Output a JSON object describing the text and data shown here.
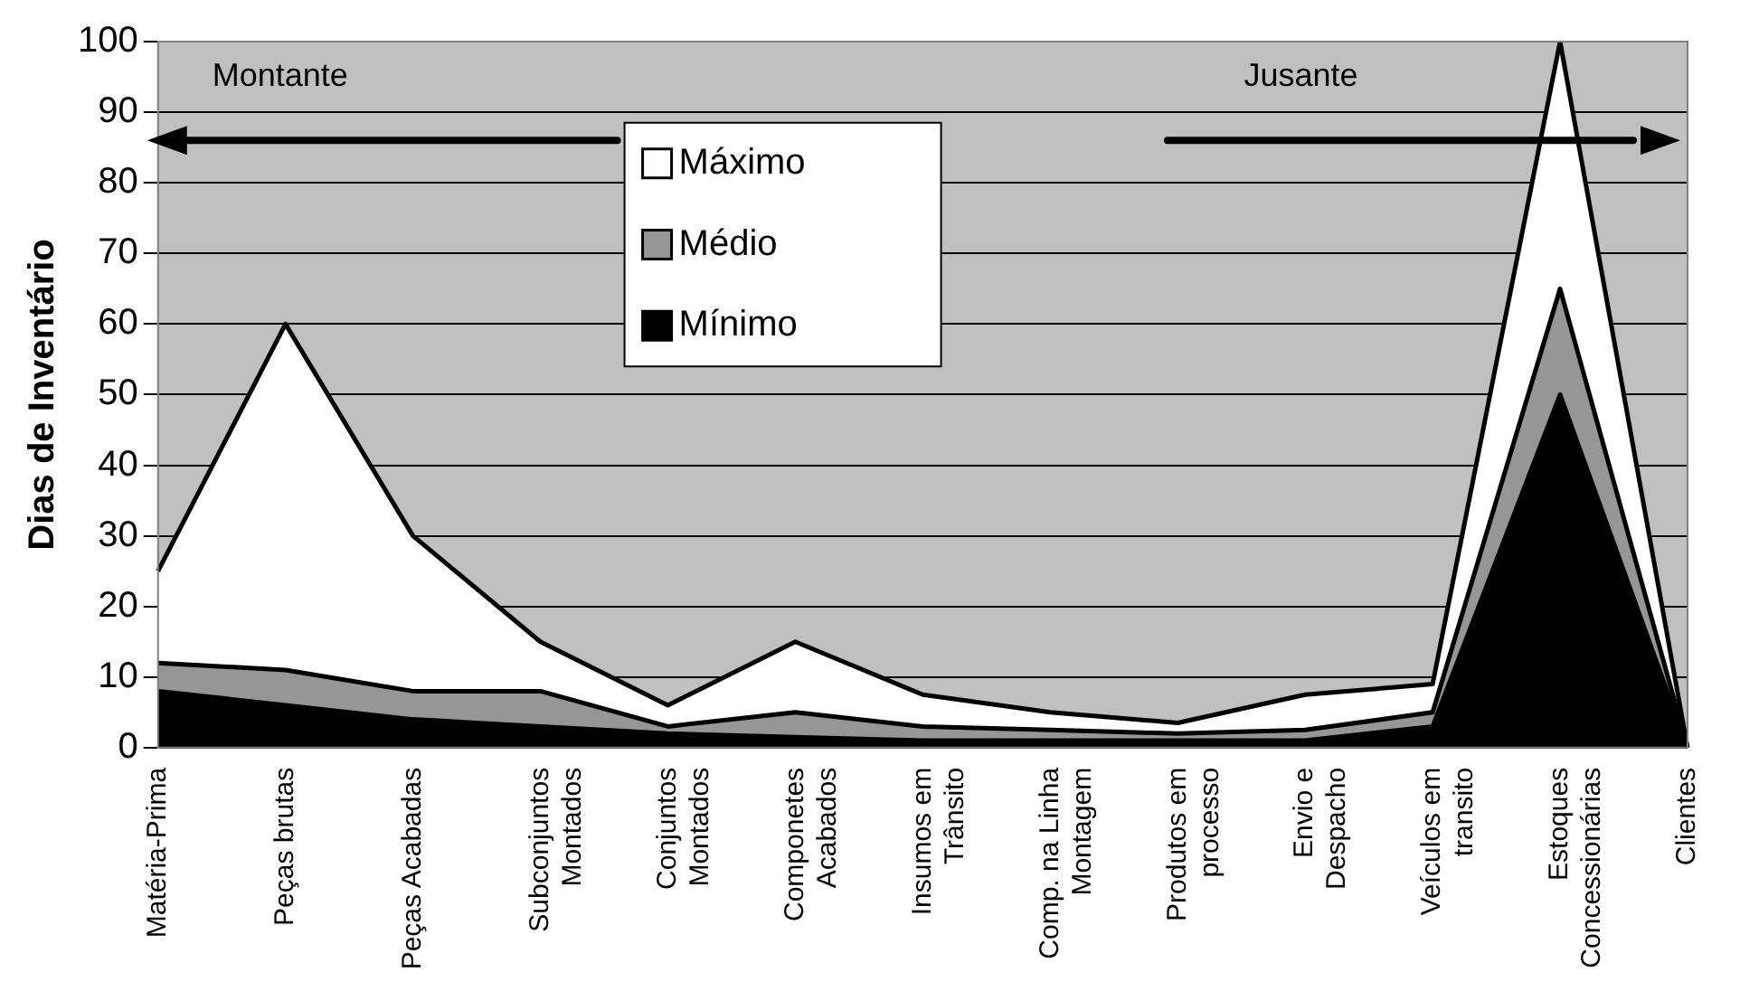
{
  "chart_data": {
    "type": "area",
    "ylabel": "Dias de Inventário",
    "categories": [
      "Matéria-Prima",
      "Peças brutas",
      "Peças Acabadas",
      "Subconjuntos Montados",
      "Conjuntos Montados",
      "Componetes Acabados",
      "Insumos em Trânsito",
      "Comp. na Linha Montagem",
      "Produtos em processo",
      "Envio e Despacho",
      "Veículos em transito",
      "Estoques Concessionárias",
      "Clientes"
    ],
    "series": [
      {
        "name": "Máximo",
        "color": "#ffffff",
        "values": [
          25,
          60,
          30,
          15,
          6,
          15,
          7.5,
          5,
          3.5,
          7.5,
          9,
          100,
          0
        ]
      },
      {
        "name": "Médio",
        "color": "#969696",
        "values": [
          12,
          11,
          8,
          8,
          3,
          5,
          3,
          2.5,
          2,
          2.5,
          5,
          65,
          0
        ]
      },
      {
        "name": "Mínimo",
        "color": "#000000",
        "values": [
          8,
          6,
          4,
          3,
          2,
          1.5,
          1,
          1,
          1,
          1,
          3,
          50,
          0
        ]
      }
    ],
    "ylim": [
      0,
      100
    ],
    "yticks": [
      0,
      10,
      20,
      30,
      40,
      50,
      60,
      70,
      80,
      90,
      100
    ],
    "grid": "y",
    "legend": "top",
    "annotations": [
      "Montante",
      "Jusante"
    ]
  }
}
